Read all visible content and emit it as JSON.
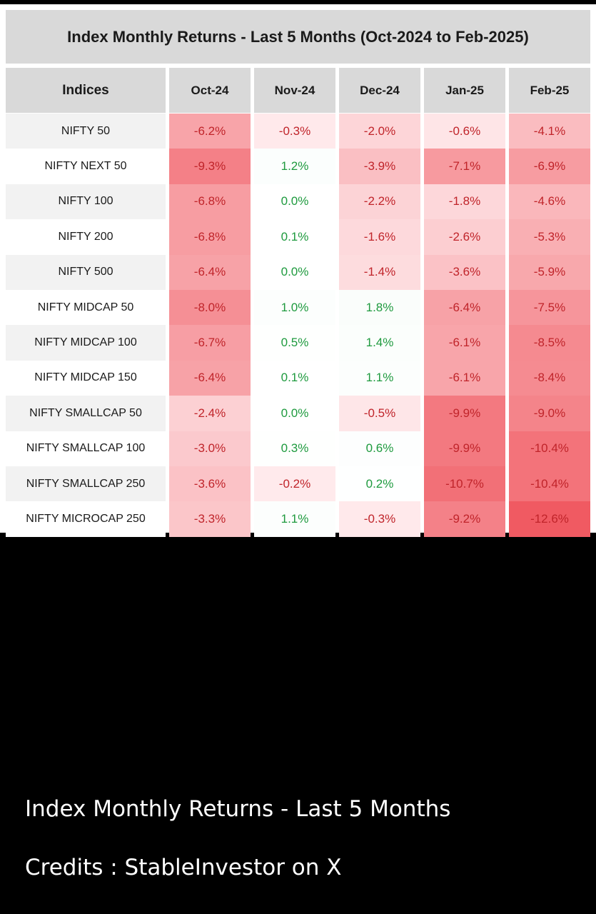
{
  "table": {
    "title": "Index Monthly Returns - Last 5 Months (Oct-2024 to Feb-2025)",
    "headers": [
      "Indices",
      "Oct-24",
      "Nov-24",
      "Dec-24",
      "Jan-25",
      "Feb-25"
    ],
    "rows": [
      {
        "name": "NIFTY 50",
        "values": [
          "-6.2%",
          "-0.3%",
          "-2.0%",
          "-0.6%",
          "-4.1%"
        ]
      },
      {
        "name": "NIFTY NEXT 50",
        "values": [
          "-9.3%",
          "1.2%",
          "-3.9%",
          "-7.1%",
          "-6.9%"
        ]
      },
      {
        "name": "NIFTY 100",
        "values": [
          "-6.8%",
          "0.0%",
          "-2.2%",
          "-1.8%",
          "-4.6%"
        ]
      },
      {
        "name": "NIFTY 200",
        "values": [
          "-6.8%",
          "0.1%",
          "-1.6%",
          "-2.6%",
          "-5.3%"
        ]
      },
      {
        "name": "NIFTY 500",
        "values": [
          "-6.4%",
          "0.0%",
          "-1.4%",
          "-3.6%",
          "-5.9%"
        ]
      },
      {
        "name": "NIFTY MIDCAP 50",
        "values": [
          "-8.0%",
          "1.0%",
          "1.8%",
          "-6.4%",
          "-7.5%"
        ]
      },
      {
        "name": "NIFTY MIDCAP 100",
        "values": [
          "-6.7%",
          "0.5%",
          "1.4%",
          "-6.1%",
          "-8.5%"
        ]
      },
      {
        "name": "NIFTY MIDCAP 150",
        "values": [
          "-6.4%",
          "0.1%",
          "1.1%",
          "-6.1%",
          "-8.4%"
        ]
      },
      {
        "name": "NIFTY SMALLCAP 50",
        "values": [
          "-2.4%",
          "0.0%",
          "-0.5%",
          "-9.9%",
          "-9.0%"
        ]
      },
      {
        "name": "NIFTY SMALLCAP 100",
        "values": [
          "-3.0%",
          "0.3%",
          "0.6%",
          "-9.9%",
          "-10.4%"
        ]
      },
      {
        "name": "NIFTY SMALLCAP 250",
        "values": [
          "-3.6%",
          "-0.2%",
          "0.2%",
          "-10.7%",
          "-10.4%"
        ]
      },
      {
        "name": "NIFTY MICROCAP 250",
        "values": [
          "-3.3%",
          "1.1%",
          "-0.3%",
          "-9.2%",
          "-12.6%"
        ]
      }
    ]
  },
  "colors": {
    "header_bg": "#d9d9d9",
    "negative_text": "#c0242a",
    "positive_text": "#1e9a3e",
    "max_negative_fill": "#f0606a",
    "page_bg": "#000000"
  },
  "caption": {
    "line1": "Index Monthly Returns - Last 5 Months",
    "line2": "Credits : StableInvestor on X"
  }
}
